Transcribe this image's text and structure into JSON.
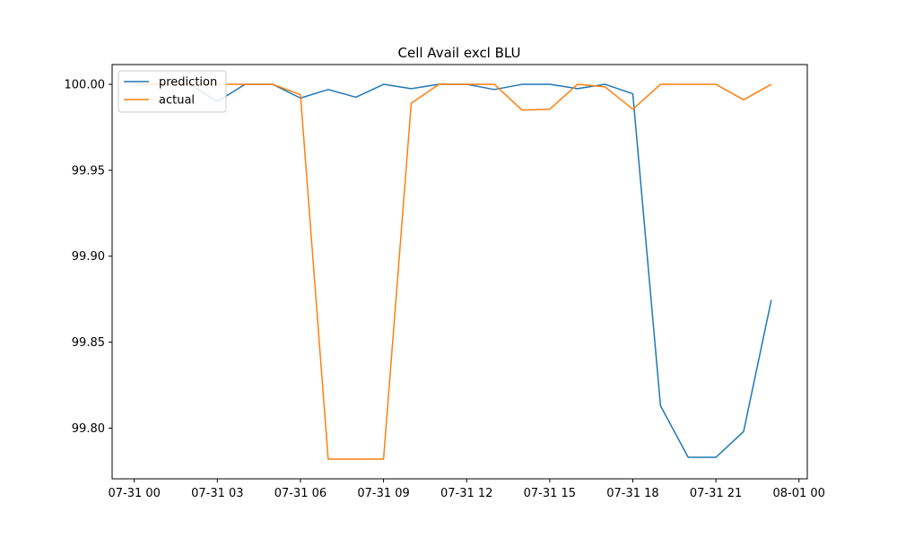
{
  "chart_data": {
    "type": "line",
    "title": "Cell Avail excl BLU",
    "xlabel": "",
    "ylabel": "",
    "x_ticks": [
      "07-31 00",
      "07-31 03",
      "07-31 06",
      "07-31 09",
      "07-31 12",
      "07-31 15",
      "07-31 18",
      "07-31 21",
      "08-01 00"
    ],
    "y_ticks": [
      "99.80",
      "99.85",
      "99.90",
      "99.95",
      "100.00"
    ],
    "xlim_hours": [
      -0.8,
      24.3
    ],
    "ylim": [
      99.7705,
      100.0115
    ],
    "grid": false,
    "legend_position": "top-left",
    "x_hours": [
      0,
      1,
      2,
      3,
      4,
      5,
      6,
      7,
      8,
      9,
      10,
      11,
      12,
      13,
      14,
      15,
      16,
      17,
      18,
      19,
      20,
      21,
      22,
      23
    ],
    "series": [
      {
        "name": "prediction",
        "color": "#1f77b4",
        "values": [
          100.0,
          100.0,
          100.0,
          99.99,
          100.0,
          100.0,
          99.992,
          99.997,
          99.9925,
          100.0,
          99.9975,
          100.0,
          100.0,
          99.997,
          100.0,
          100.0,
          99.9975,
          100.0,
          99.9945,
          99.813,
          99.783,
          99.783,
          99.798,
          99.8745
        ]
      },
      {
        "name": "actual",
        "color": "#ff7f0e",
        "values": [
          100.0,
          100.0,
          100.0,
          100.0,
          100.0,
          100.0,
          99.994,
          99.782,
          99.782,
          99.782,
          99.989,
          100.0,
          100.0,
          100.0,
          99.985,
          99.9855,
          100.0,
          99.9985,
          99.9855,
          100.0,
          100.0,
          100.0,
          99.991,
          100.0
        ]
      }
    ]
  }
}
